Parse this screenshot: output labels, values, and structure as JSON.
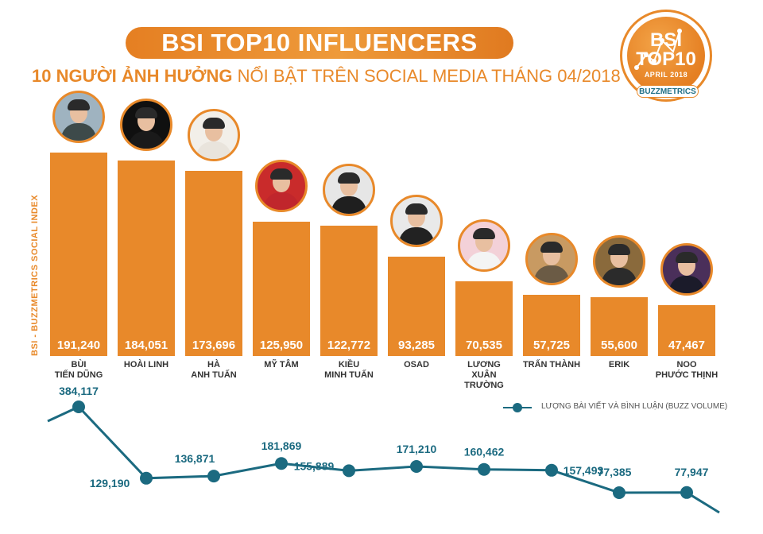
{
  "title": "BSI TOP10 INFLUENCERS",
  "subtitle_part1": "10 NGƯỜI ẢNH HƯỞNG",
  "subtitle_part2": " NỔI BẬT TRÊN SOCIAL MEDIA THÁNG 04/2018",
  "badge": {
    "line1": "BSI",
    "line2": "TOP10",
    "month": "APRIL 2018",
    "brand": "BUZZMETRICS"
  },
  "y_axis_label": "BSI - BUZZMETRICS SOCIAL INDEX",
  "legend": {
    "label": "LƯỢNG BÀI VIẾT VÀ BÌNH LUẬN (BUZZ VOLUME)"
  },
  "colors": {
    "bar": "#e8892a",
    "line": "#1b6a80",
    "accent": "#e8892a"
  },
  "chart_data": [
    {
      "type": "bar",
      "ylabel": "BSI - BUZZMETRICS SOCIAL INDEX",
      "categories": [
        "BÙI\nTIẾN DŨNG",
        "HOÀI LINH",
        "HÀ\nANH TUẤN",
        "MỸ TÂM",
        "KIỀU\nMINH TUẤN",
        "OSAD",
        "LƯƠNG\nXUÂN\nTRƯỜNG",
        "TRẤN THÀNH",
        "ERIK",
        "NOO\nPHƯỚC THỊNH"
      ],
      "values": [
        191240,
        184051,
        173696,
        125950,
        122772,
        93285,
        70535,
        57725,
        55600,
        47467
      ],
      "value_labels": [
        "191,240",
        "184,051",
        "173,696",
        "125,950",
        "122,772",
        "93,285",
        "70,535",
        "57,725",
        "55,600",
        "47,467"
      ]
    },
    {
      "type": "line",
      "series": [
        {
          "name": "LƯỢNG BÀI VIẾT VÀ BÌNH LUẬN (BUZZ VOLUME)",
          "values": [
            384117,
            129190,
            136871,
            181869,
            155889,
            171210,
            160462,
            157493,
            77385,
            77947
          ],
          "value_labels": [
            "384,117",
            "129,190",
            "136,871",
            "181,869",
            "155,889",
            "171,210",
            "160,462",
            "157,493",
            "77,385",
            "77,947"
          ]
        }
      ]
    }
  ]
}
